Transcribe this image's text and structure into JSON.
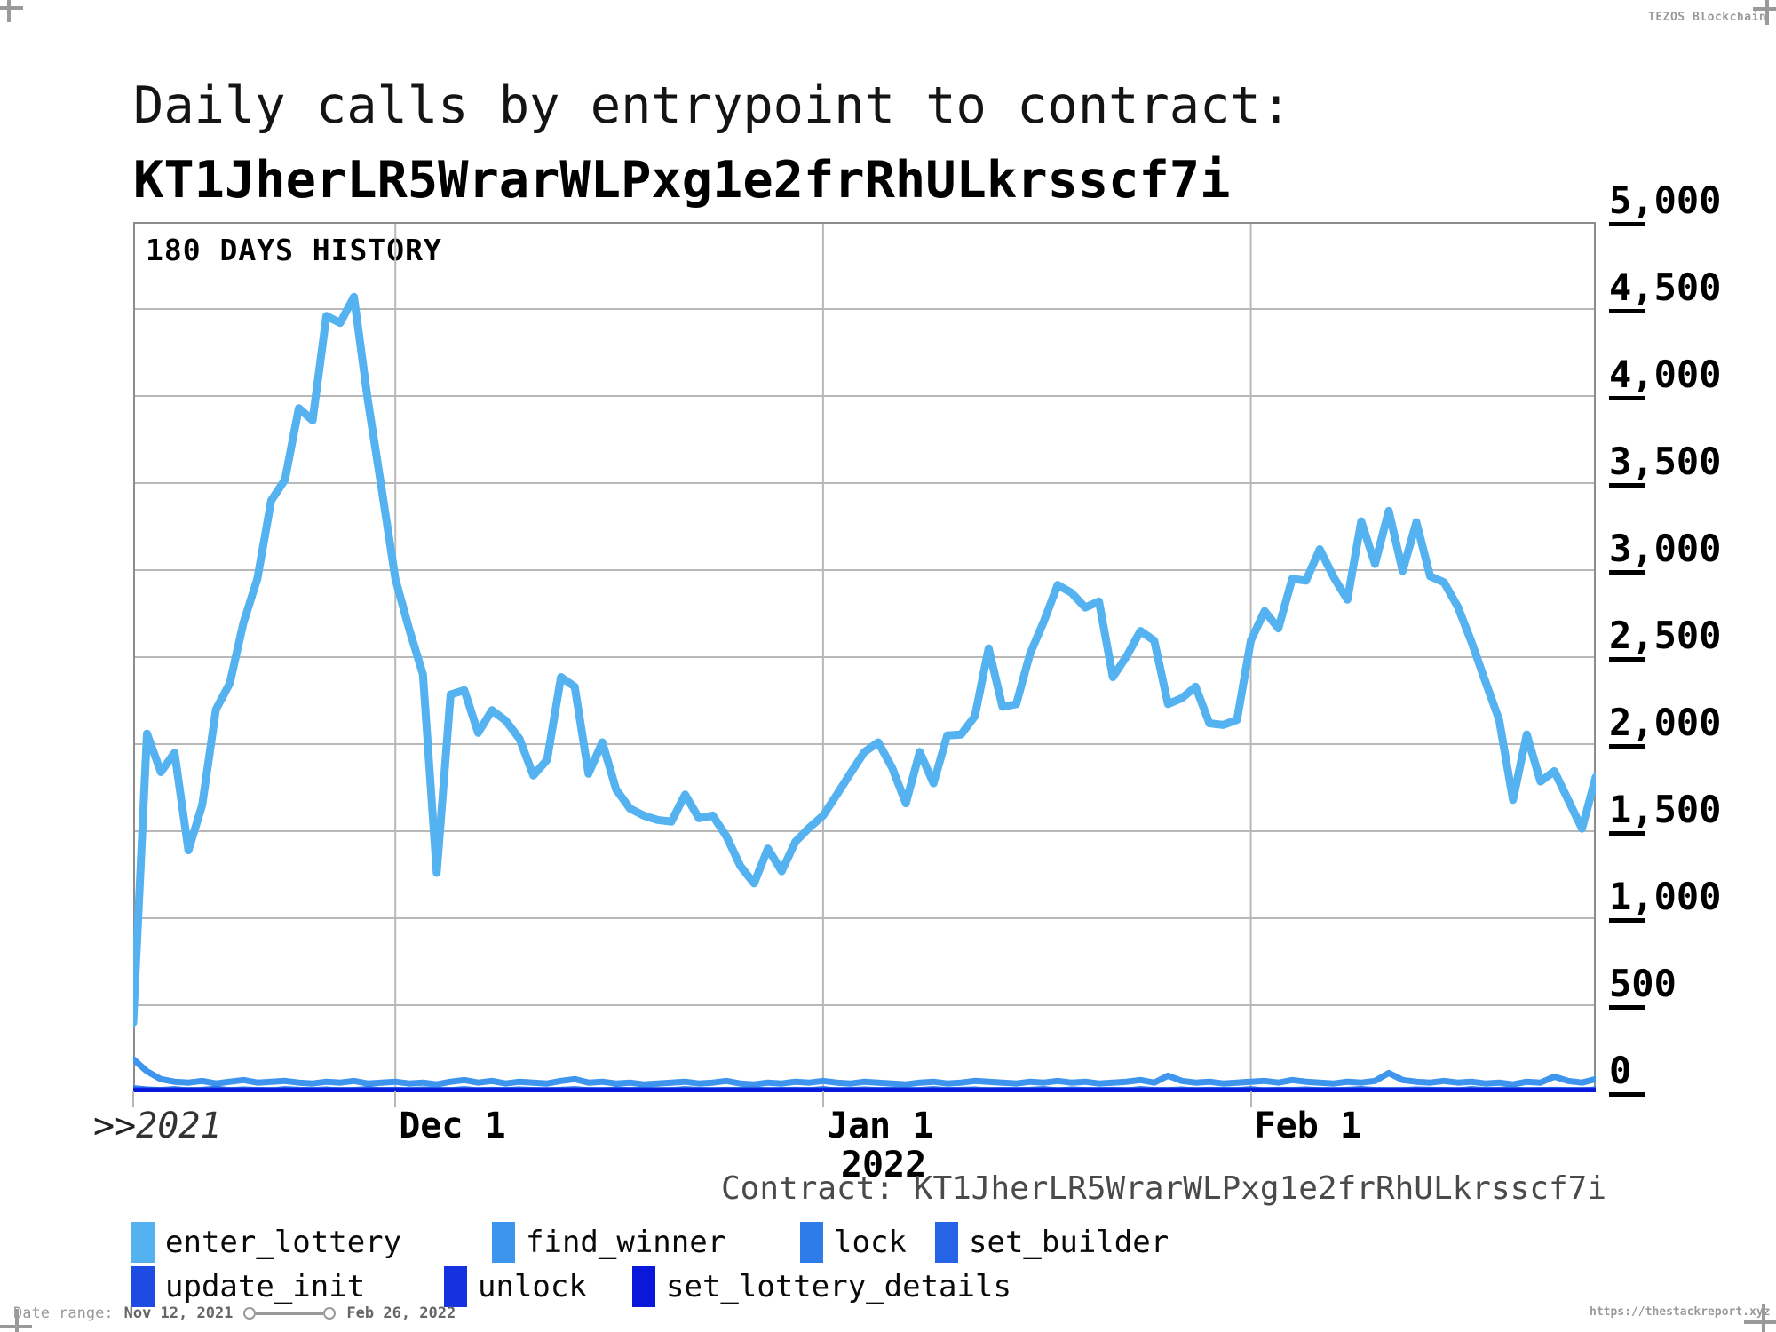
{
  "meta": {
    "brand": "TEZOS Blockchain",
    "url": "https://thestackreport.xyz"
  },
  "title": {
    "line1": "Daily calls by entrypoint to contract:",
    "line2": "KT1JherLR5WrarWLPxg1e2frRhULkrsscf7i"
  },
  "panel_label": "180 DAYS HISTORY",
  "caption": {
    "label": "Contract:",
    "value": "KT1JherLR5WrarWLPxg1e2frRhULkrsscf7i"
  },
  "footer": {
    "label": "Date range:",
    "start": "Nov 12, 2021",
    "end": "Feb 26, 2022"
  },
  "chart_data": {
    "type": "line",
    "title": "Daily calls by entrypoint to contract KT1JherLR5WrarWLPxg1e2frRhULkrsscf7i",
    "x_start": "Nov 12, 2021",
    "x_end": "Feb 26, 2022",
    "n_points": 107,
    "ylim": [
      0,
      5000
    ],
    "grid": true,
    "legend_position": "bottom",
    "yticks": [
      {
        "v": 0,
        "label": "0"
      },
      {
        "v": 500,
        "label": "500"
      },
      {
        "v": 1000,
        "label": "1,000"
      },
      {
        "v": 1500,
        "label": "1,500"
      },
      {
        "v": 2000,
        "label": "2,000"
      },
      {
        "v": 2500,
        "label": "2,500"
      },
      {
        "v": 3000,
        "label": "3,000"
      },
      {
        "v": 3500,
        "label": "3,500"
      },
      {
        "v": 4000,
        "label": "4,000"
      },
      {
        "v": 4500,
        "label": "4,500"
      },
      {
        "v": 5000,
        "label": "5,000"
      }
    ],
    "x_origin": {
      "prefix": ">>",
      "year": "2021"
    },
    "xticks": [
      {
        "day": 19,
        "label": "Dec 1"
      },
      {
        "day": 50,
        "label": "Jan 1",
        "sub": "2022"
      },
      {
        "day": 81,
        "label": "Feb 1"
      }
    ],
    "series": [
      {
        "name": "enter_lottery",
        "color": "#55B2F0",
        "values": [
          400,
          2060,
          1840,
          1950,
          1390,
          1650,
          2200,
          2350,
          2700,
          2950,
          3400,
          3520,
          3930,
          3860,
          4460,
          4420,
          4570,
          3980,
          3470,
          2950,
          2660,
          2400,
          1260,
          2285,
          2310,
          2065,
          2195,
          2135,
          2030,
          1820,
          1910,
          2385,
          2330,
          1830,
          2010,
          1740,
          1630,
          1590,
          1565,
          1555,
          1710,
          1575,
          1590,
          1470,
          1300,
          1200,
          1400,
          1270,
          1440,
          1520,
          1590,
          1710,
          1835,
          1955,
          2010,
          1865,
          1660,
          1955,
          1775,
          2050,
          2055,
          2160,
          2550,
          2215,
          2230,
          2520,
          2705,
          2915,
          2870,
          2785,
          2820,
          2385,
          2505,
          2650,
          2595,
          2230,
          2265,
          2330,
          2120,
          2110,
          2140,
          2595,
          2765,
          2665,
          2950,
          2940,
          3120,
          2960,
          2830,
          3280,
          3035,
          3340,
          2995,
          3275,
          2965,
          2930,
          2790,
          2585,
          2360,
          2140,
          1680,
          2055,
          1785,
          1845,
          1680,
          1515,
          1810
        ]
      },
      {
        "name": "find_winner",
        "color": "#3D95EE",
        "values": [
          190,
          120,
          75,
          60,
          55,
          65,
          50,
          60,
          70,
          55,
          60,
          65,
          55,
          50,
          60,
          55,
          65,
          50,
          55,
          60,
          50,
          55,
          45,
          60,
          70,
          55,
          65,
          50,
          60,
          55,
          50,
          65,
          75,
          55,
          60,
          50,
          55,
          45,
          50,
          55,
          60,
          50,
          55,
          65,
          50,
          45,
          55,
          50,
          60,
          55,
          65,
          55,
          50,
          60,
          55,
          50,
          45,
          55,
          60,
          50,
          55,
          65,
          60,
          55,
          50,
          60,
          55,
          65,
          55,
          60,
          50,
          55,
          60,
          70,
          55,
          95,
          65,
          55,
          60,
          50,
          55,
          60,
          65,
          55,
          70,
          60,
          55,
          50,
          60,
          55,
          65,
          110,
          70,
          60,
          55,
          65,
          55,
          60,
          50,
          55,
          45,
          60,
          55,
          90,
          65,
          55,
          75
        ]
      },
      {
        "name": "lock",
        "color": "#2E7BEA",
        "values": [
          25,
          18,
          15,
          20,
          12,
          16,
          22,
          14,
          18,
          15,
          12,
          20,
          16,
          14,
          18,
          12,
          15,
          20,
          14,
          16,
          12,
          18,
          15,
          14,
          20,
          12,
          16,
          14,
          18,
          15,
          12,
          16,
          20,
          14,
          12,
          18,
          15,
          16,
          12,
          14,
          20,
          15,
          12,
          16,
          14,
          18,
          12,
          15,
          16,
          14,
          20,
          12,
          15,
          18,
          14,
          16,
          12,
          15,
          20,
          14,
          16,
          18,
          12,
          15,
          14,
          16,
          20,
          12,
          18,
          15,
          14,
          16,
          12,
          20,
          15,
          14,
          18,
          12,
          16,
          15,
          14,
          20,
          12,
          16,
          15,
          18,
          14,
          12,
          16,
          20,
          15,
          12,
          14,
          18,
          16,
          15,
          12,
          20,
          14,
          16,
          18,
          12,
          15,
          16,
          14,
          12,
          18
        ]
      },
      {
        "name": "set_builder",
        "color": "#2563E7",
        "flat_value": 12
      },
      {
        "name": "update_init",
        "color": "#1D4CE4",
        "flat_value": 9
      },
      {
        "name": "unlock",
        "color": "#1432E0",
        "flat_value": 6
      },
      {
        "name": "set_lottery_details",
        "color": "#0A18DC",
        "flat_value": 4
      }
    ]
  }
}
